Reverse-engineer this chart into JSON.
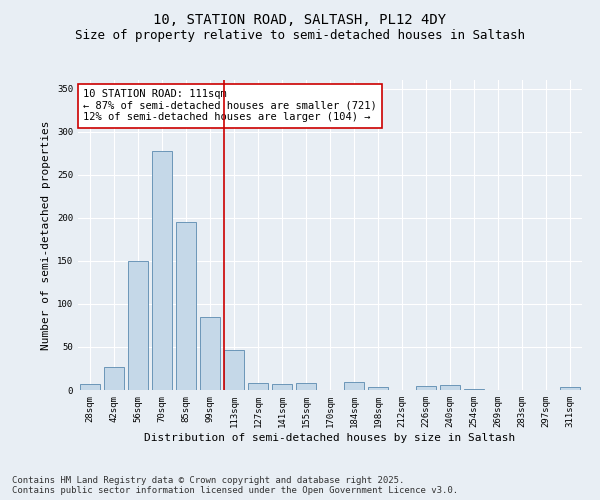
{
  "title_line1": "10, STATION ROAD, SALTASH, PL12 4DY",
  "title_line2": "Size of property relative to semi-detached houses in Saltash",
  "xlabel": "Distribution of semi-detached houses by size in Saltash",
  "ylabel": "Number of semi-detached properties",
  "categories": [
    "28sqm",
    "42sqm",
    "56sqm",
    "70sqm",
    "85sqm",
    "99sqm",
    "113sqm",
    "127sqm",
    "141sqm",
    "155sqm",
    "170sqm",
    "184sqm",
    "198sqm",
    "212sqm",
    "226sqm",
    "240sqm",
    "254sqm",
    "269sqm",
    "283sqm",
    "297sqm",
    "311sqm"
  ],
  "values": [
    7,
    27,
    150,
    278,
    195,
    85,
    47,
    8,
    7,
    8,
    0,
    9,
    4,
    0,
    5,
    6,
    1,
    0,
    0,
    0,
    3
  ],
  "bar_color": "#c5d8e8",
  "bar_edge_color": "#5a8ab0",
  "vline_x": 5.57,
  "marker_label": "10 STATION ROAD: 111sqm",
  "annotation_line1": "← 87% of semi-detached houses are smaller (721)",
  "annotation_line2": "12% of semi-detached houses are larger (104) →",
  "vline_color": "#cc0000",
  "box_edge_color": "#cc0000",
  "ylim": [
    0,
    360
  ],
  "yticks": [
    0,
    50,
    100,
    150,
    200,
    250,
    300,
    350
  ],
  "footer_line1": "Contains HM Land Registry data © Crown copyright and database right 2025.",
  "footer_line2": "Contains public sector information licensed under the Open Government Licence v3.0.",
  "bg_color": "#e8eef4",
  "plot_bg_color": "#e8eef4",
  "title_fontsize": 10,
  "subtitle_fontsize": 9,
  "tick_fontsize": 6.5,
  "axis_label_fontsize": 8,
  "annotation_fontsize": 7.5,
  "footer_fontsize": 6.5
}
